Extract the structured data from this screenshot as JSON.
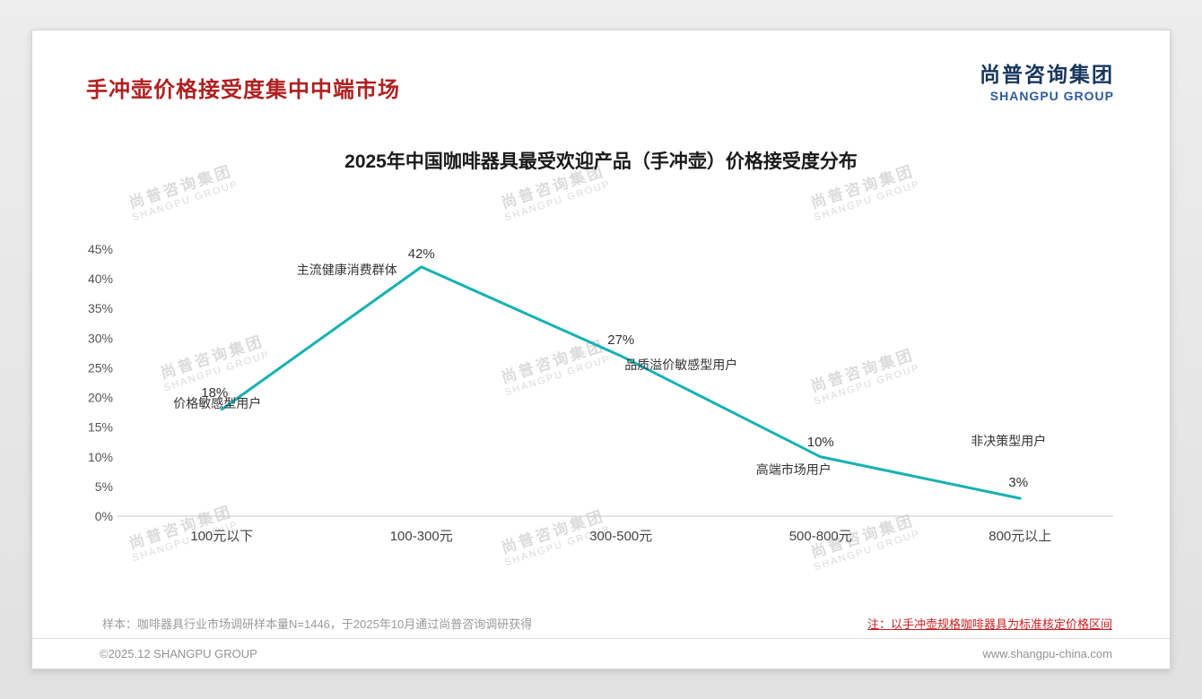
{
  "header": {
    "title": "手冲壶价格接受度集中中端市场",
    "logo_cn": "尚普咨询集团",
    "logo_en": "SHANGPU GROUP"
  },
  "watermark": {
    "line1": "尚普咨询集团",
    "line2": "SHANGPU GROUP"
  },
  "chart_data": {
    "type": "line",
    "title": "2025年中国咖啡器具最受欢迎产品（手冲壶）价格接受度分布",
    "categories": [
      "100元以下",
      "100-300元",
      "300-500元",
      "500-800元",
      "800元以上"
    ],
    "values": [
      18,
      42,
      27,
      10,
      3
    ],
    "value_labels": [
      "18%",
      "42%",
      "27%",
      "10%",
      "3%"
    ],
    "point_annotations": [
      "价格敏感型用户",
      "主流健康消费群体",
      "品质溢价敏感型用户",
      "高端市场用户",
      "非决策型用户"
    ],
    "ylabel_ticks": [
      "0%",
      "5%",
      "10%",
      "15%",
      "20%",
      "25%",
      "30%",
      "35%",
      "40%",
      "45%"
    ],
    "ylim": [
      0,
      45
    ],
    "xlabel": "",
    "ylabel": "",
    "grid": false,
    "legend": false,
    "line_color": "#14b2b2"
  },
  "footer": {
    "sample_note": "样本：咖啡器具行业市场调研样本量N=1446，于2025年10月通过尚普咨询调研获得",
    "price_note": "注：以手冲壶规格咖啡器具为标准核定价格区间",
    "copyright": "©2025.12 SHANGPU GROUP",
    "website": "www.shangpu-china.com"
  }
}
